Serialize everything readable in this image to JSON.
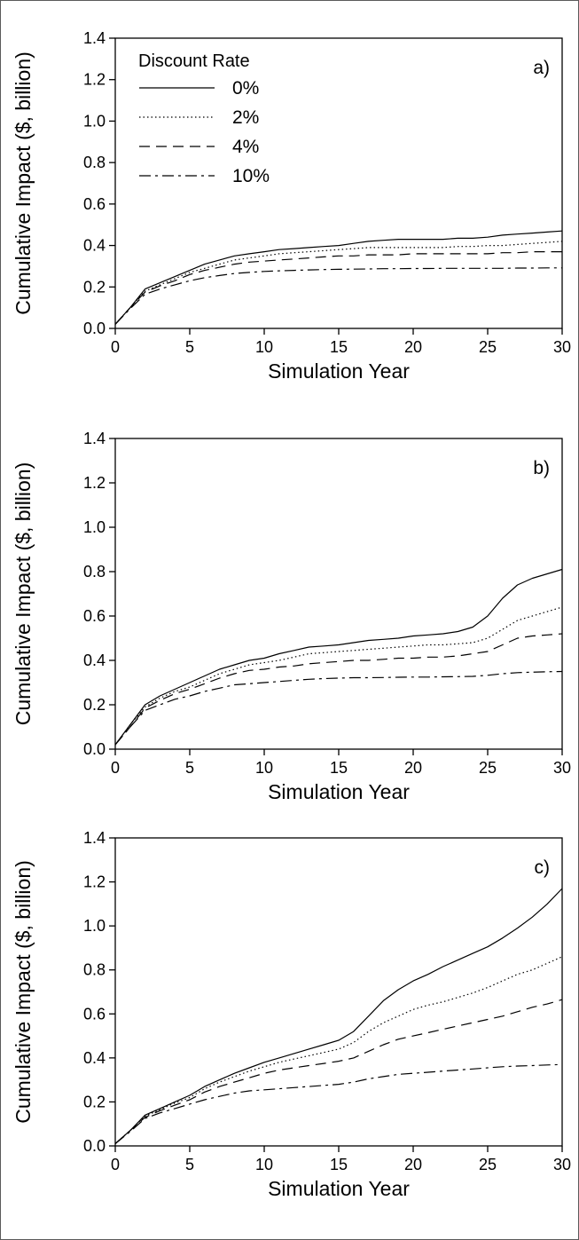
{
  "colors": {
    "line": "#000000",
    "frame": "#5a5a5a",
    "background": "#ffffff"
  },
  "chart_data": [
    {
      "type": "line",
      "panel_label": "a)",
      "xlabel": "Simulation Year",
      "ylabel": "Cumulative Impact ($, billion)",
      "xlim": [
        0,
        30
      ],
      "ylim": [
        0,
        1.4
      ],
      "xticks": [
        "0",
        "5",
        "10",
        "15",
        "20",
        "25",
        "30"
      ],
      "yticks": [
        "0.0",
        "0.2",
        "0.4",
        "0.6",
        "0.8",
        "1.0",
        "1.2",
        "1.4"
      ],
      "grid": false,
      "legend": {
        "title": "Discount Rate",
        "placement": "top-left"
      },
      "x": [
        0,
        1,
        2,
        3,
        4,
        5,
        6,
        7,
        8,
        9,
        10,
        11,
        12,
        13,
        14,
        15,
        16,
        17,
        18,
        19,
        20,
        21,
        22,
        23,
        24,
        25,
        26,
        27,
        28,
        29,
        30
      ],
      "series": [
        {
          "name": "0%",
          "style": "solid",
          "values": [
            0.02,
            0.1,
            0.19,
            0.22,
            0.25,
            0.28,
            0.31,
            0.33,
            0.35,
            0.36,
            0.37,
            0.38,
            0.385,
            0.39,
            0.395,
            0.4,
            0.41,
            0.42,
            0.425,
            0.43,
            0.43,
            0.43,
            0.43,
            0.435,
            0.435,
            0.44,
            0.45,
            0.455,
            0.46,
            0.465,
            0.47
          ]
        },
        {
          "name": "2%",
          "style": "dotted",
          "values": [
            0.02,
            0.1,
            0.18,
            0.21,
            0.24,
            0.27,
            0.29,
            0.31,
            0.33,
            0.34,
            0.35,
            0.36,
            0.365,
            0.37,
            0.375,
            0.38,
            0.385,
            0.39,
            0.39,
            0.39,
            0.39,
            0.39,
            0.39,
            0.395,
            0.395,
            0.4,
            0.4,
            0.405,
            0.41,
            0.415,
            0.42
          ]
        },
        {
          "name": "4%",
          "style": "dashed",
          "values": [
            0.02,
            0.1,
            0.175,
            0.205,
            0.23,
            0.26,
            0.28,
            0.295,
            0.31,
            0.32,
            0.325,
            0.33,
            0.335,
            0.34,
            0.345,
            0.35,
            0.35,
            0.355,
            0.355,
            0.355,
            0.36,
            0.36,
            0.36,
            0.36,
            0.36,
            0.36,
            0.365,
            0.365,
            0.37,
            0.37,
            0.37
          ]
        },
        {
          "name": "10%",
          "style": "dashdot",
          "values": [
            0.02,
            0.095,
            0.165,
            0.19,
            0.21,
            0.23,
            0.245,
            0.255,
            0.265,
            0.27,
            0.275,
            0.278,
            0.28,
            0.282,
            0.284,
            0.285,
            0.286,
            0.287,
            0.288,
            0.288,
            0.289,
            0.289,
            0.29,
            0.29,
            0.29,
            0.29,
            0.29,
            0.291,
            0.291,
            0.292,
            0.292
          ]
        }
      ]
    },
    {
      "type": "line",
      "panel_label": "b)",
      "xlabel": "Simulation Year",
      "ylabel": "Cumulative Impact ($, billion)",
      "xlim": [
        0,
        30
      ],
      "ylim": [
        0,
        1.4
      ],
      "xticks": [
        "0",
        "5",
        "10",
        "15",
        "20",
        "25",
        "30"
      ],
      "yticks": [
        "0.0",
        "0.2",
        "0.4",
        "0.6",
        "0.8",
        "1.0",
        "1.2",
        "1.4"
      ],
      "grid": false,
      "x": [
        0,
        1,
        2,
        3,
        4,
        5,
        6,
        7,
        8,
        9,
        10,
        11,
        12,
        13,
        14,
        15,
        16,
        17,
        18,
        19,
        20,
        21,
        22,
        23,
        24,
        25,
        26,
        27,
        28,
        29,
        30
      ],
      "series": [
        {
          "name": "0%",
          "style": "solid",
          "values": [
            0.02,
            0.11,
            0.2,
            0.24,
            0.27,
            0.3,
            0.33,
            0.36,
            0.38,
            0.4,
            0.41,
            0.43,
            0.445,
            0.46,
            0.465,
            0.47,
            0.48,
            0.49,
            0.495,
            0.5,
            0.51,
            0.515,
            0.52,
            0.53,
            0.55,
            0.6,
            0.68,
            0.74,
            0.77,
            0.79,
            0.81
          ]
        },
        {
          "name": "2%",
          "style": "dotted",
          "values": [
            0.02,
            0.11,
            0.19,
            0.23,
            0.26,
            0.28,
            0.31,
            0.34,
            0.36,
            0.38,
            0.39,
            0.4,
            0.415,
            0.43,
            0.435,
            0.44,
            0.445,
            0.45,
            0.455,
            0.46,
            0.465,
            0.47,
            0.47,
            0.475,
            0.48,
            0.5,
            0.54,
            0.58,
            0.6,
            0.62,
            0.64
          ]
        },
        {
          "name": "4%",
          "style": "dashed",
          "values": [
            0.02,
            0.1,
            0.185,
            0.22,
            0.25,
            0.27,
            0.295,
            0.32,
            0.34,
            0.355,
            0.36,
            0.37,
            0.375,
            0.385,
            0.39,
            0.395,
            0.4,
            0.4,
            0.405,
            0.41,
            0.41,
            0.415,
            0.415,
            0.42,
            0.43,
            0.44,
            0.47,
            0.5,
            0.51,
            0.515,
            0.52
          ]
        },
        {
          "name": "10%",
          "style": "dashdot",
          "values": [
            0.02,
            0.1,
            0.175,
            0.2,
            0.225,
            0.24,
            0.26,
            0.275,
            0.29,
            0.295,
            0.3,
            0.305,
            0.31,
            0.315,
            0.318,
            0.32,
            0.322,
            0.322,
            0.323,
            0.324,
            0.325,
            0.325,
            0.326,
            0.327,
            0.328,
            0.333,
            0.34,
            0.345,
            0.347,
            0.349,
            0.35
          ]
        }
      ]
    },
    {
      "type": "line",
      "panel_label": "c)",
      "xlabel": "Simulation Year",
      "ylabel": "Cumulative Impact ($, billion)",
      "xlim": [
        0,
        30
      ],
      "ylim": [
        0,
        1.4
      ],
      "xticks": [
        "0",
        "5",
        "10",
        "15",
        "20",
        "25",
        "30"
      ],
      "yticks": [
        "0.0",
        "0.2",
        "0.4",
        "0.6",
        "0.8",
        "1.0",
        "1.2",
        "1.4"
      ],
      "grid": false,
      "x": [
        0,
        1,
        2,
        3,
        4,
        5,
        6,
        7,
        8,
        9,
        10,
        11,
        12,
        13,
        14,
        15,
        16,
        17,
        18,
        19,
        20,
        21,
        22,
        23,
        24,
        25,
        26,
        27,
        28,
        29,
        30
      ],
      "series": [
        {
          "name": "0%",
          "style": "solid",
          "values": [
            0.01,
            0.07,
            0.14,
            0.17,
            0.2,
            0.23,
            0.27,
            0.3,
            0.33,
            0.355,
            0.38,
            0.4,
            0.42,
            0.44,
            0.46,
            0.48,
            0.52,
            0.59,
            0.66,
            0.71,
            0.75,
            0.78,
            0.815,
            0.845,
            0.875,
            0.905,
            0.945,
            0.99,
            1.04,
            1.1,
            1.17
          ]
        },
        {
          "name": "2%",
          "style": "dotted",
          "values": [
            0.01,
            0.07,
            0.135,
            0.165,
            0.195,
            0.22,
            0.26,
            0.29,
            0.315,
            0.34,
            0.36,
            0.38,
            0.395,
            0.41,
            0.425,
            0.44,
            0.47,
            0.52,
            0.56,
            0.59,
            0.62,
            0.64,
            0.655,
            0.675,
            0.695,
            0.72,
            0.75,
            0.78,
            0.8,
            0.83,
            0.86
          ]
        },
        {
          "name": "4%",
          "style": "dashed",
          "values": [
            0.01,
            0.07,
            0.13,
            0.16,
            0.185,
            0.21,
            0.245,
            0.27,
            0.29,
            0.31,
            0.33,
            0.345,
            0.355,
            0.365,
            0.375,
            0.385,
            0.4,
            0.43,
            0.46,
            0.485,
            0.5,
            0.515,
            0.53,
            0.545,
            0.56,
            0.575,
            0.59,
            0.61,
            0.63,
            0.645,
            0.665
          ]
        },
        {
          "name": "10%",
          "style": "dashdot",
          "values": [
            0.01,
            0.065,
            0.125,
            0.15,
            0.17,
            0.19,
            0.21,
            0.225,
            0.24,
            0.25,
            0.255,
            0.26,
            0.265,
            0.27,
            0.275,
            0.28,
            0.29,
            0.305,
            0.315,
            0.325,
            0.33,
            0.335,
            0.34,
            0.345,
            0.35,
            0.355,
            0.36,
            0.363,
            0.365,
            0.368,
            0.37
          ]
        }
      ]
    }
  ]
}
